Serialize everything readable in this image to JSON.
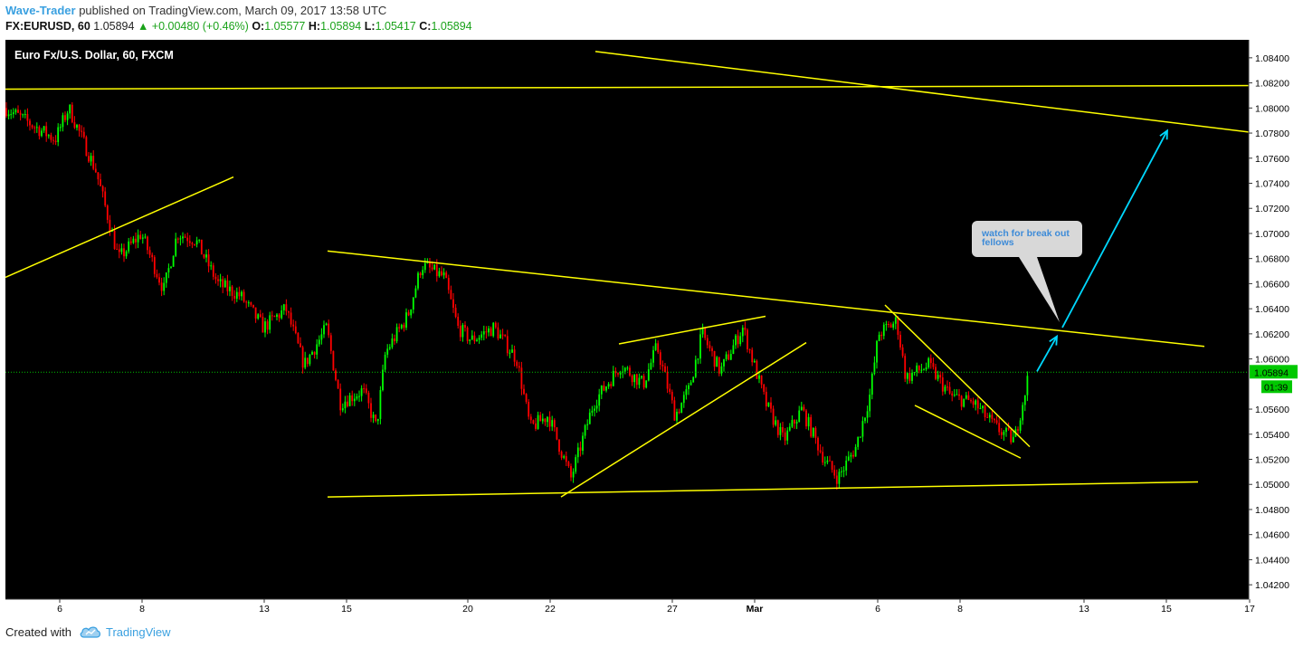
{
  "header": {
    "author": "Wave-Trader",
    "published_text": "published on TradingView.com, March 09, 2017 13:58 UTC",
    "symbol": "FX:EURUSD, 60",
    "last": "1.05894",
    "change": "+0.00480 (+0.46%)",
    "open_label": "O:",
    "open": "1.05577",
    "high_label": "H:",
    "high": "1.05894",
    "low_label": "L:",
    "low": "1.05417",
    "close_label": "C:",
    "close": "1.05894"
  },
  "chart_title": "Euro Fx/U.S. Dollar, 60, FXCM",
  "callout": "watch for break out fellows",
  "price_labels": {
    "current": "1.05894",
    "countdown": "01:39"
  },
  "footer": {
    "created_with": "Created with",
    "brand": "TradingView"
  },
  "colors": {
    "up": "#00ff00",
    "down": "#ff0000",
    "trendline": "#ffff00",
    "arrow": "#00d8ff",
    "background": "#000000"
  },
  "chart_data": {
    "type": "candlestick",
    "y_axis": {
      "range": [
        1.041,
        1.085
      ],
      "ticks": [
        "1.08400",
        "1.08200",
        "1.08000",
        "1.07800",
        "1.07600",
        "1.07400",
        "1.07200",
        "1.07000",
        "1.06800",
        "1.06600",
        "1.06400",
        "1.06200",
        "1.06000",
        "1.05600",
        "1.05400",
        "1.05200",
        "1.05000",
        "1.04800",
        "1.04600",
        "1.04400",
        "1.04200"
      ]
    },
    "x_axis": {
      "ticks": [
        "6",
        "8",
        "13",
        "15",
        "20",
        "22",
        "27",
        "Mar",
        "6",
        "8",
        "13",
        "15",
        "17"
      ]
    },
    "path": [
      [
        0,
        1.08
      ],
      [
        55,
        1.0775
      ],
      [
        70,
        1.08
      ],
      [
        100,
        1.075
      ],
      [
        125,
        1.068
      ],
      [
        150,
        1.07
      ],
      [
        175,
        1.0655
      ],
      [
        190,
        1.07
      ],
      [
        210,
        1.0695
      ],
      [
        235,
        1.066
      ],
      [
        260,
        1.065
      ],
      [
        285,
        1.0625
      ],
      [
        310,
        1.064
      ],
      [
        330,
        1.0595
      ],
      [
        355,
        1.0625
      ],
      [
        370,
        1.0565
      ],
      [
        395,
        1.0575
      ],
      [
        410,
        1.0545
      ],
      [
        420,
        1.0605
      ],
      [
        445,
        1.0635
      ],
      [
        460,
        1.0675
      ],
      [
        485,
        1.0665
      ],
      [
        500,
        1.0625
      ],
      [
        515,
        1.0615
      ],
      [
        540,
        1.0625
      ],
      [
        565,
        1.06
      ],
      [
        580,
        1.0545
      ],
      [
        600,
        1.0555
      ],
      [
        625,
        1.0505
      ],
      [
        650,
        1.0565
      ],
      [
        680,
        1.0595
      ],
      [
        705,
        1.058
      ],
      [
        720,
        1.061
      ],
      [
        740,
        1.0555
      ],
      [
        755,
        1.0575
      ],
      [
        770,
        1.062
      ],
      [
        790,
        1.059
      ],
      [
        815,
        1.0625
      ],
      [
        840,
        1.0565
      ],
      [
        860,
        1.0535
      ],
      [
        880,
        1.056
      ],
      [
        905,
        1.052
      ],
      [
        920,
        1.0505
      ],
      [
        940,
        1.053
      ],
      [
        955,
        1.057
      ],
      [
        965,
        1.062
      ],
      [
        985,
        1.063
      ],
      [
        995,
        1.0585
      ],
      [
        1020,
        1.0595
      ],
      [
        1045,
        1.057
      ],
      [
        1070,
        1.0565
      ],
      [
        1095,
        1.0545
      ],
      [
        1115,
        1.0535
      ],
      [
        1130,
        1.0585
      ]
    ],
    "trendlines": [
      {
        "from": [
          0,
          1.0815
        ],
        "to": [
          1428,
          1.0818
        ]
      },
      {
        "from": [
          652,
          1.0845
        ],
        "to": [
          1428,
          1.0776
        ]
      },
      {
        "from": [
          0,
          1.0665
        ],
        "to": [
          252,
          1.0745
        ]
      },
      {
        "from": [
          356,
          1.0686
        ],
        "to": [
          1325,
          1.061
        ]
      },
      {
        "from": [
          356,
          1.049
        ],
        "to": [
          1318,
          1.0502
        ]
      },
      {
        "from": [
          614,
          1.049
        ],
        "to": [
          885,
          1.0613
        ]
      },
      {
        "from": [
          678,
          1.0612
        ],
        "to": [
          840,
          1.0634
        ]
      },
      {
        "from": [
          972,
          1.0643
        ],
        "to": [
          1132,
          1.053
        ]
      },
      {
        "from": [
          1005,
          1.0563
        ],
        "to": [
          1122,
          1.0521
        ]
      }
    ],
    "arrows": [
      {
        "from": [
          1140,
          1.059
        ],
        "to": [
          1162,
          1.0618
        ]
      },
      {
        "from": [
          1168,
          1.0625
        ],
        "to": [
          1284,
          1.0782
        ]
      }
    ]
  }
}
